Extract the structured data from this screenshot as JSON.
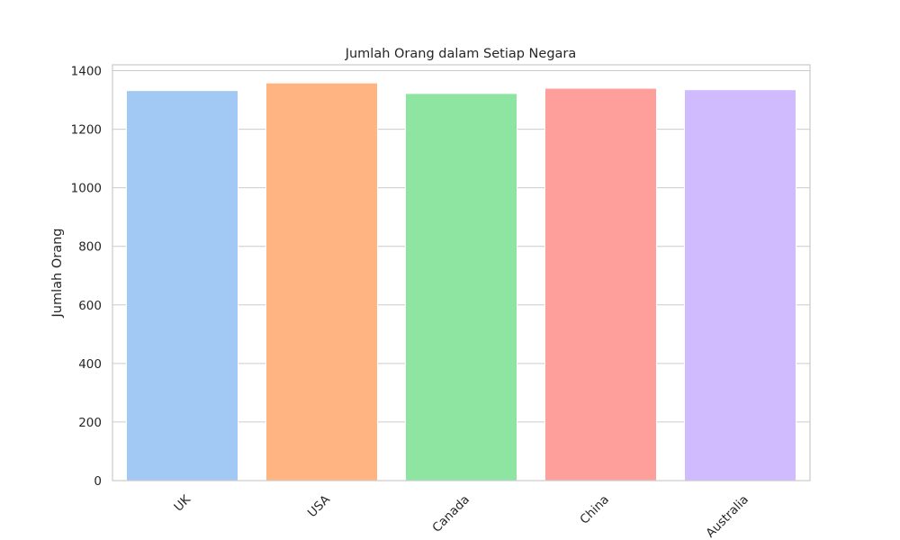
{
  "chart_data": {
    "type": "bar",
    "title": "Jumlah Orang dalam Setiap Negara",
    "xlabel": "",
    "ylabel": "Jumlah Orang",
    "categories": [
      "UK",
      "USA",
      "Canada",
      "China",
      "Australia"
    ],
    "values": [
      1332,
      1358,
      1322,
      1340,
      1335
    ],
    "colors": [
      "#a1c9f4",
      "#ffb482",
      "#8de5a1",
      "#ff9f9b",
      "#d0bbff"
    ],
    "ylim": [
      0,
      1420
    ],
    "yticks": [
      0,
      200,
      400,
      600,
      800,
      1000,
      1200,
      1400
    ],
    "grid": true,
    "legend": "none"
  }
}
